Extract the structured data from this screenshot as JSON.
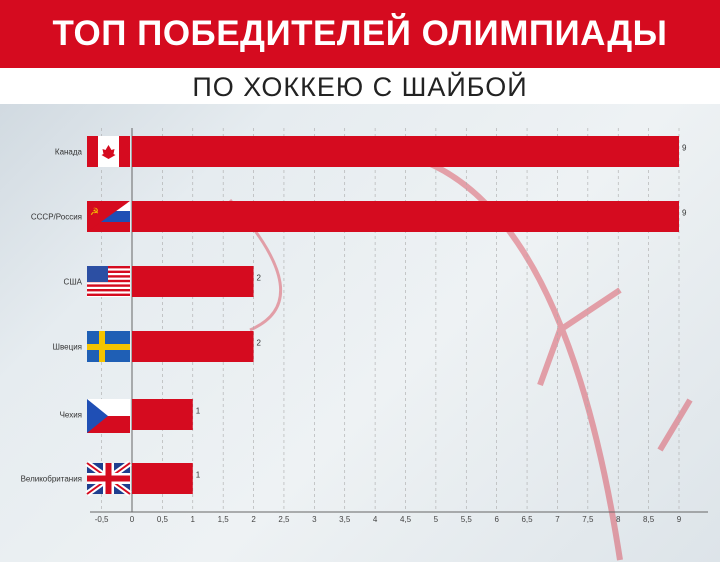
{
  "header": {
    "title": "ТОП ПОБЕДИТЕЛЕЙ ОЛИМПИАДЫ",
    "subtitle": "ПО ХОККЕЮ С ШАЙБОЙ"
  },
  "colors": {
    "bar": "#d50b1f",
    "header": "#d50b1f"
  },
  "chart_data": {
    "type": "bar",
    "orientation": "horizontal",
    "categories": [
      "Канада",
      "СССР/Россия",
      "США",
      "Швеция",
      "Чехия",
      "Великобритания"
    ],
    "flags": [
      "canada-flag-icon",
      "ussr-russia-flag-icon",
      "usa-flag-icon",
      "sweden-flag-icon",
      "czech-flag-icon",
      "uk-flag-icon"
    ],
    "values": [
      9,
      9,
      2,
      2,
      1,
      1
    ],
    "xlim": [
      -0.5,
      9
    ],
    "xticks": [
      "-0,5",
      "0",
      "0,5",
      "1",
      "1,5",
      "2",
      "2,5",
      "3",
      "3,5",
      "4",
      "4,5",
      "5",
      "5,5",
      "6",
      "6,5",
      "7",
      "7,5",
      "8",
      "8,5",
      "9"
    ],
    "grid": true
  }
}
